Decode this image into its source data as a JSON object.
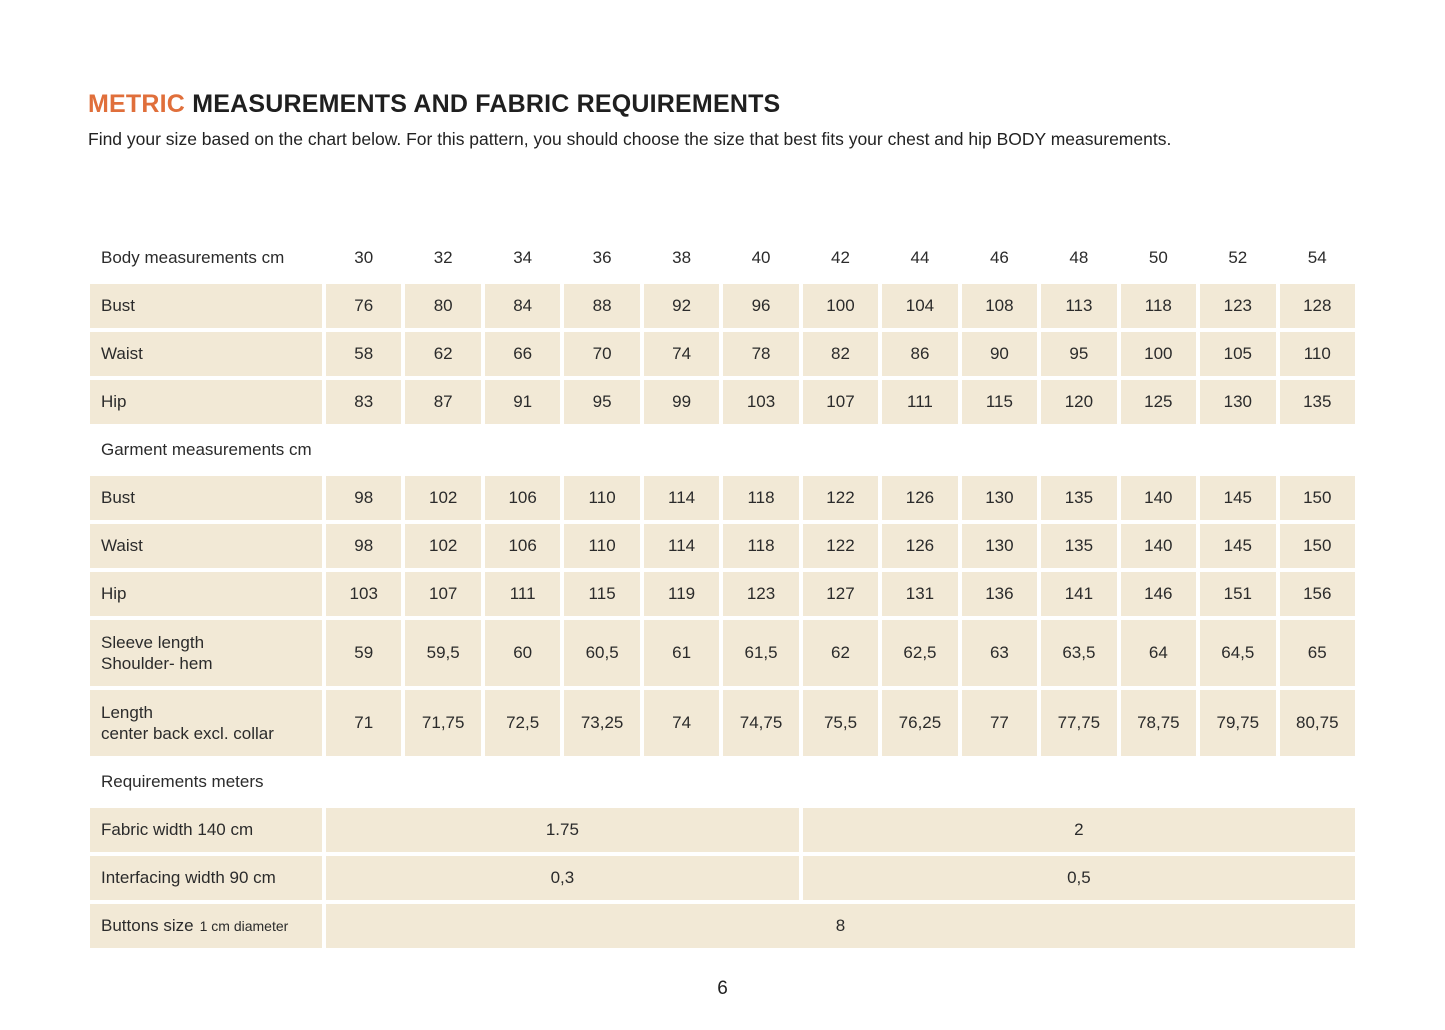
{
  "header": {
    "title_highlight": "METRIC",
    "title_rest": "MEASUREMENTS AND FABRIC REQUIREMENTS",
    "subtitle": "Find your size based on the chart below. For this pattern, you should choose the size that best fits your chest and hip BODY measurements."
  },
  "size_chart": {
    "header_label": "Body measurements cm",
    "sizes": [
      "30",
      "32",
      "34",
      "36",
      "38",
      "40",
      "42",
      "44",
      "46",
      "48",
      "50",
      "52",
      "54"
    ],
    "body_rows": [
      {
        "label": "Bust",
        "values": [
          "76",
          "80",
          "84",
          "88",
          "92",
          "96",
          "100",
          "104",
          "108",
          "113",
          "118",
          "123",
          "128"
        ]
      },
      {
        "label": "Waist",
        "values": [
          "58",
          "62",
          "66",
          "70",
          "74",
          "78",
          "82",
          "86",
          "90",
          "95",
          "100",
          "105",
          "110"
        ]
      },
      {
        "label": "Hip",
        "values": [
          "83",
          "87",
          "91",
          "95",
          "99",
          "103",
          "107",
          "111",
          "115",
          "120",
          "125",
          "130",
          "135"
        ]
      }
    ],
    "garment_section_label": "Garment measurements cm",
    "garment_rows": [
      {
        "label": "Bust",
        "values": [
          "98",
          "102",
          "106",
          "110",
          "114",
          "118",
          "122",
          "126",
          "130",
          "135",
          "140",
          "145",
          "150"
        ]
      },
      {
        "label": "Waist",
        "values": [
          "98",
          "102",
          "106",
          "110",
          "114",
          "118",
          "122",
          "126",
          "130",
          "135",
          "140",
          "145",
          "150"
        ]
      },
      {
        "label": "Hip",
        "values": [
          "103",
          "107",
          "111",
          "115",
          "119",
          "123",
          "127",
          "131",
          "136",
          "141",
          "146",
          "151",
          "156"
        ]
      },
      {
        "label": "Sleeve length",
        "label_line2": "Shoulder- hem",
        "values": [
          "59",
          "59,5",
          "60",
          "60,5",
          "61",
          "61,5",
          "62",
          "62,5",
          "63",
          "63,5",
          "64",
          "64,5",
          "65"
        ]
      },
      {
        "label": "Length",
        "label_line2": "center back excl. collar",
        "values": [
          "71",
          "71,75",
          "72,5",
          "73,25",
          "74",
          "74,75",
          "75,5",
          "76,25",
          "77",
          "77,75",
          "78,75",
          "79,75",
          "80,75"
        ]
      }
    ],
    "requirements_section_label": "Requirements meters",
    "requirement_rows": [
      {
        "label": "Fabric width 140 cm",
        "value_sizes_30_40": "1.75",
        "value_sizes_42_54": "2"
      },
      {
        "label": "Interfacing width 90 cm",
        "value_sizes_30_40": "0,3",
        "value_sizes_42_54": "0,5"
      },
      {
        "label": "Buttons size",
        "label_small": "1 cm diameter",
        "value_all_sizes": "8"
      }
    ]
  },
  "footer": {
    "page_number": "6"
  },
  "colors": {
    "accent_orange": "#E06F3B",
    "cell_beige": "#F2E9D6",
    "text_dark": "#2B2B2B"
  }
}
